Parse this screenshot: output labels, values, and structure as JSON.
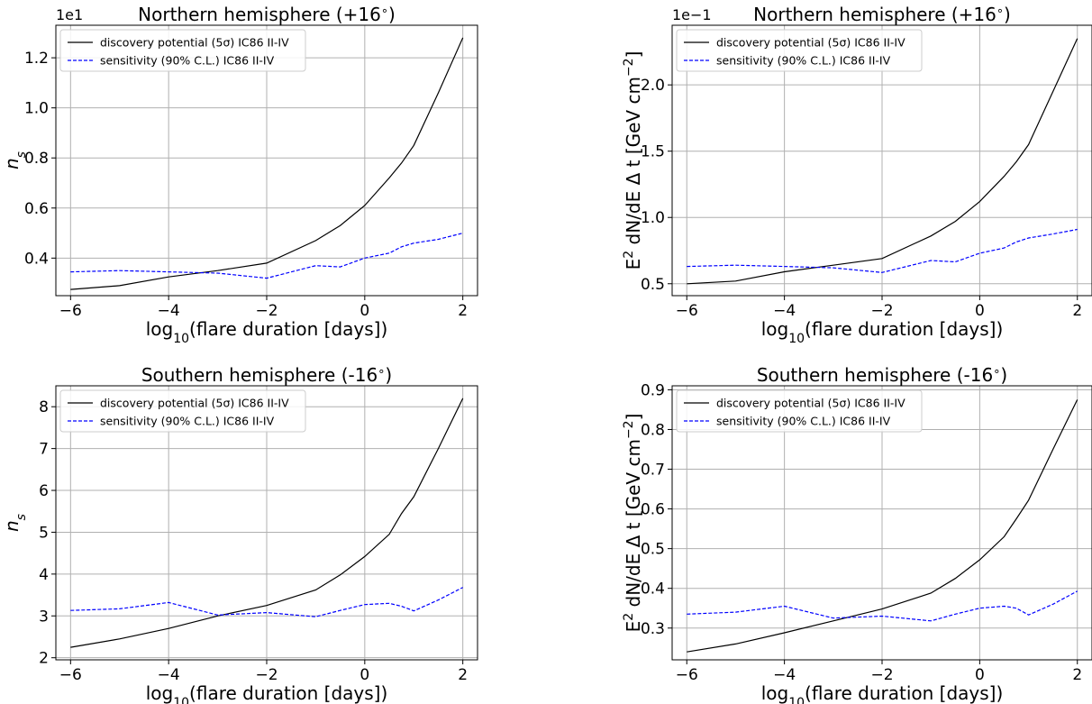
{
  "chart_data": [
    {
      "type": "line",
      "title": "Northern hemisphere (+16$^\\circ$)",
      "title_text": "Northern hemisphere (+16",
      "title_suffix": ")",
      "xlabel": "log10(flare duration [days])",
      "ylabel": "n_s",
      "offset_text": "1e1",
      "xlim": [
        -6.3,
        2.3
      ],
      "ylim": [
        2.5,
        13.3
      ],
      "xticks": [
        -6,
        -4,
        -2,
        0,
        2
      ],
      "yticks": [
        4,
        6,
        8,
        10,
        12
      ],
      "ytick_labels": [
        "0.4",
        "0.6",
        "0.8",
        "1.0",
        "1.2"
      ],
      "grid": true,
      "legend_position": "top-left",
      "series": [
        {
          "name": "discovery potential (5σ) IC86 II-IV",
          "color": "#000000",
          "dash": "solid",
          "x": [
            -6,
            -5,
            -4,
            -3,
            -2,
            -1,
            -0.5,
            0,
            0.5,
            0.75,
            1,
            1.5,
            2
          ],
          "y": [
            2.75,
            2.9,
            3.25,
            3.5,
            3.8,
            4.7,
            5.3,
            6.1,
            7.2,
            7.8,
            8.5,
            10.6,
            12.8
          ]
        },
        {
          "name": "sensitivity (90% C.L.) IC86 II-IV",
          "color": "#0000ff",
          "dash": "dashed",
          "x": [
            -6,
            -5,
            -4,
            -3,
            -2,
            -1,
            -0.5,
            0,
            0.5,
            0.75,
            1,
            1.5,
            2
          ],
          "y": [
            3.45,
            3.5,
            3.45,
            3.4,
            3.2,
            3.7,
            3.65,
            4.0,
            4.2,
            4.45,
            4.6,
            4.75,
            5.0
          ]
        }
      ]
    },
    {
      "type": "line",
      "title": "Northern hemisphere (+16$^\\circ$)",
      "title_text": "Northern hemisphere (+16",
      "title_suffix": ")",
      "xlabel": "log10(flare duration [days])",
      "ylabel": "E2 dN/dE Δ t [GeV cm−2]",
      "offset_text": "1e−1",
      "xlim": [
        -6.3,
        2.3
      ],
      "ylim": [
        0.41,
        2.45
      ],
      "xticks": [
        -6,
        -4,
        -2,
        0,
        2
      ],
      "yticks": [
        0.5,
        1.0,
        1.5,
        2.0
      ],
      "ytick_labels": [
        "0.5",
        "1.0",
        "1.5",
        "2.0"
      ],
      "grid": true,
      "legend_position": "top-left",
      "series": [
        {
          "name": "discovery potential (5σ) IC86 II-IV",
          "color": "#000000",
          "dash": "solid",
          "x": [
            -6,
            -5,
            -4,
            -3,
            -2,
            -1,
            -0.5,
            0,
            0.5,
            0.75,
            1,
            1.5,
            2
          ],
          "y": [
            0.5,
            0.52,
            0.59,
            0.64,
            0.69,
            0.86,
            0.97,
            1.12,
            1.31,
            1.42,
            1.55,
            1.95,
            2.35
          ]
        },
        {
          "name": "sensitivity (90% C.L.) IC86 II-IV",
          "color": "#0000ff",
          "dash": "dashed",
          "x": [
            -6,
            -5,
            -4,
            -3,
            -2,
            -1,
            -0.5,
            0,
            0.5,
            0.75,
            1,
            1.5,
            2
          ],
          "y": [
            0.63,
            0.64,
            0.63,
            0.62,
            0.585,
            0.675,
            0.665,
            0.73,
            0.77,
            0.815,
            0.845,
            0.875,
            0.91
          ]
        }
      ]
    },
    {
      "type": "line",
      "title": "Southern hemisphere (-16$^\\circ$)",
      "title_text": "Southern hemisphere (-16",
      "title_suffix": ")",
      "xlabel": "log10(flare duration [days])",
      "ylabel": "n_s",
      "offset_text": "",
      "xlim": [
        -6.3,
        2.3
      ],
      "ylim": [
        1.95,
        8.5
      ],
      "xticks": [
        -6,
        -4,
        -2,
        0,
        2
      ],
      "yticks": [
        2,
        3,
        4,
        5,
        6,
        7,
        8
      ],
      "ytick_labels": [
        "2",
        "3",
        "4",
        "5",
        "6",
        "7",
        "8"
      ],
      "grid": true,
      "legend_position": "top-left",
      "series": [
        {
          "name": "discovery potential (5σ) IC86 II-IV",
          "color": "#000000",
          "dash": "solid",
          "x": [
            -6,
            -5,
            -4,
            -3,
            -2,
            -1,
            -0.5,
            0,
            0.5,
            0.75,
            1,
            1.5,
            2
          ],
          "y": [
            2.25,
            2.45,
            2.7,
            3.0,
            3.25,
            3.62,
            3.98,
            4.42,
            4.95,
            5.45,
            5.85,
            7.0,
            8.2
          ]
        },
        {
          "name": "sensitivity (90% C.L.) IC86 II-IV",
          "color": "#0000ff",
          "dash": "dashed",
          "x": [
            -6,
            -5,
            -4,
            -3,
            -2,
            -1,
            -0.5,
            0,
            0.5,
            0.75,
            1,
            1.5,
            2
          ],
          "y": [
            3.13,
            3.17,
            3.32,
            3.02,
            3.08,
            2.98,
            3.13,
            3.27,
            3.3,
            3.23,
            3.12,
            3.38,
            3.68
          ]
        }
      ]
    },
    {
      "type": "line",
      "title": "Southern hemisphere (-16$^\\circ$)",
      "title_text": "Southern hemisphere (-16",
      "title_suffix": ")",
      "xlabel": "log10(flare duration [days])",
      "ylabel": "E2 dN/dE Δ t [GeV cm−2]",
      "offset_text": "",
      "xlim": [
        -6.3,
        2.3
      ],
      "ylim": [
        0.22,
        0.91
      ],
      "xticks": [
        -6,
        -4,
        -2,
        0,
        2
      ],
      "yticks": [
        0.3,
        0.4,
        0.5,
        0.6,
        0.7,
        0.8,
        0.9
      ],
      "ytick_labels": [
        "0.3",
        "0.4",
        "0.5",
        "0.6",
        "0.7",
        "0.8",
        "0.9"
      ],
      "grid": true,
      "legend_position": "top-left",
      "series": [
        {
          "name": "discovery potential (5σ) IC86 II-IV",
          "color": "#000000",
          "dash": "solid",
          "x": [
            -6,
            -5,
            -4,
            -3,
            -2,
            -1,
            -0.5,
            0,
            0.5,
            0.75,
            1,
            1.5,
            2
          ],
          "y": [
            0.24,
            0.26,
            0.288,
            0.318,
            0.348,
            0.388,
            0.425,
            0.472,
            0.53,
            0.575,
            0.622,
            0.75,
            0.875
          ]
        },
        {
          "name": "sensitivity (90% C.L.) IC86 II-IV",
          "color": "#0000ff",
          "dash": "dashed",
          "x": [
            -6,
            -5,
            -4,
            -3,
            -2,
            -1,
            -0.5,
            0,
            0.5,
            0.75,
            1,
            1.5,
            2
          ],
          "y": [
            0.335,
            0.34,
            0.355,
            0.325,
            0.33,
            0.318,
            0.335,
            0.35,
            0.355,
            0.35,
            0.333,
            0.36,
            0.393
          ]
        }
      ]
    }
  ]
}
